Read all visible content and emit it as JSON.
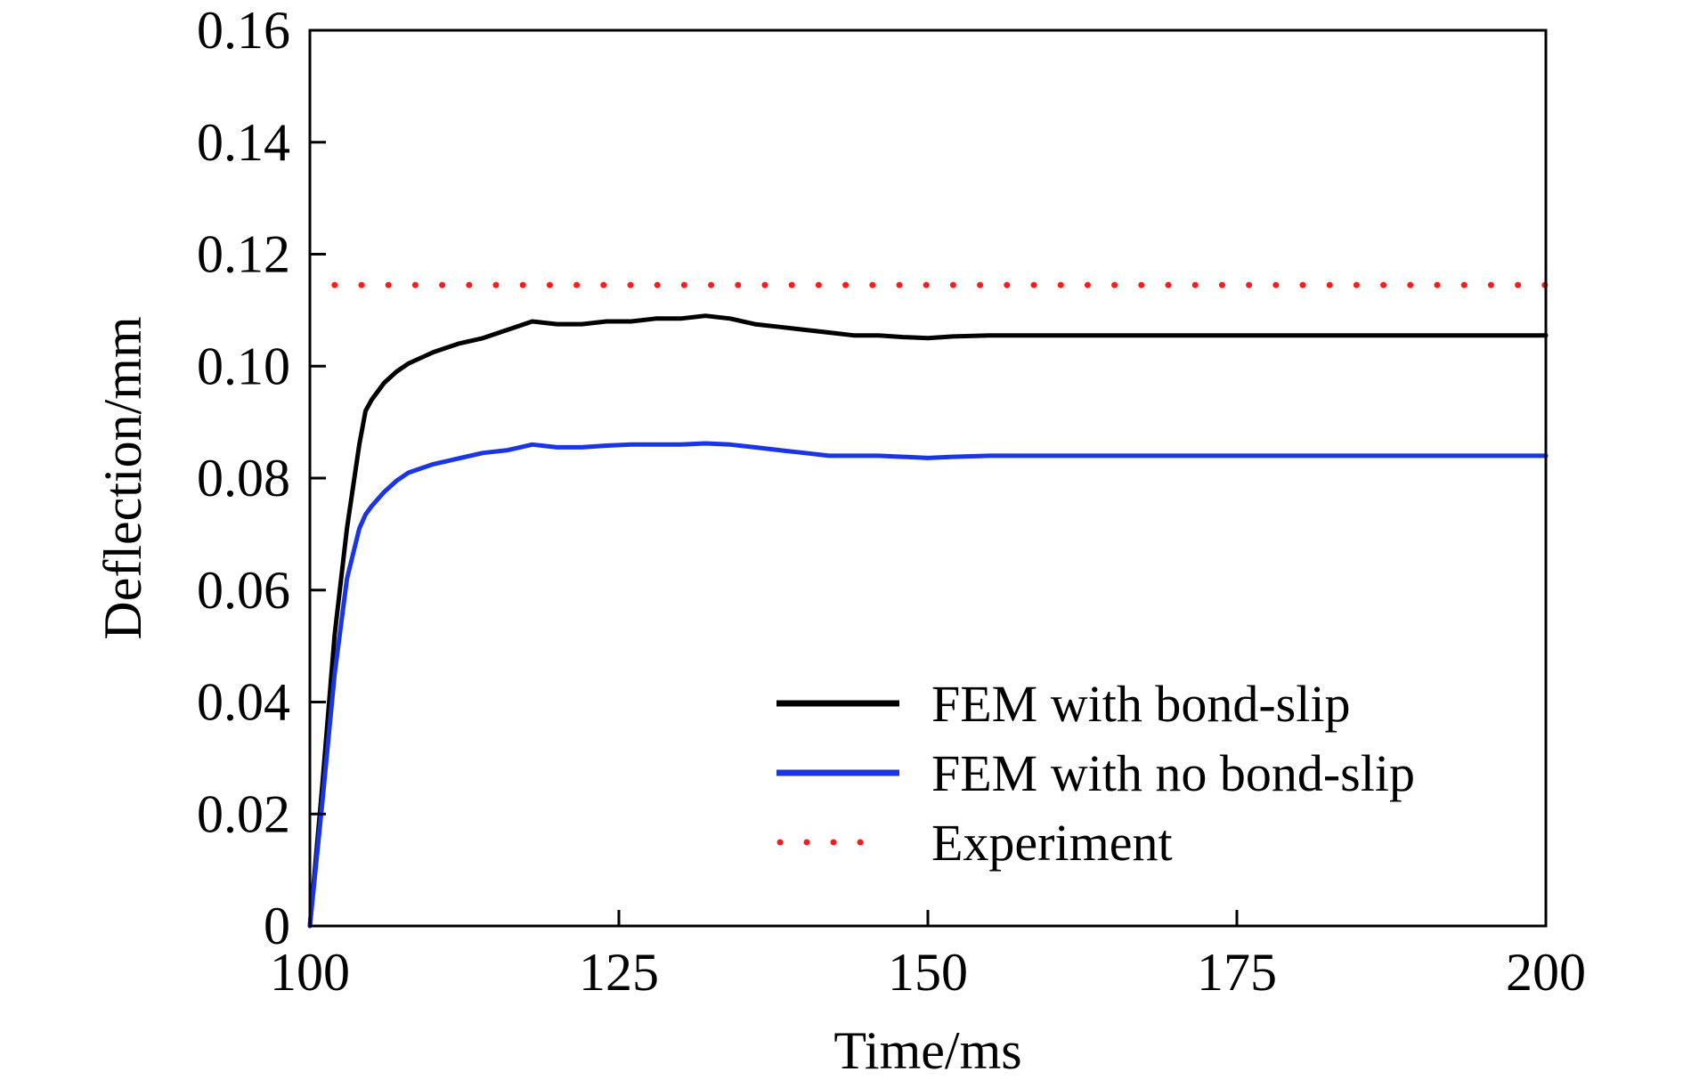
{
  "chart_data": {
    "type": "line",
    "title": "",
    "xlabel": "Time/ms",
    "ylabel": "Deflection/mm",
    "xlim": [
      100,
      200
    ],
    "ylim": [
      0,
      0.16
    ],
    "xticks": [
      100,
      125,
      150,
      175,
      200
    ],
    "xtick_labels": [
      "100",
      "125",
      "150",
      "175",
      "200"
    ],
    "yticks": [
      0,
      0.02,
      0.04,
      0.06,
      0.08,
      0.1,
      0.12,
      0.14,
      0.16
    ],
    "ytick_labels": [
      "0",
      "0.02",
      "0.04",
      "0.06",
      "0.08",
      "0.10",
      "0.12",
      "0.14",
      "0.16"
    ],
    "grid": false,
    "legend_position": "bottom-right",
    "series": [
      {
        "name": "FEM with bond-slip",
        "color": "#000000",
        "style": "solid",
        "x": [
          100,
          101,
          102,
          103,
          104,
          104.5,
          105,
          106,
          107,
          108,
          110,
          112,
          114,
          116,
          118,
          120,
          122,
          124,
          126,
          128,
          130,
          132,
          134,
          136,
          138,
          140,
          142,
          144,
          146,
          148,
          150,
          152,
          155,
          160,
          165,
          170,
          175,
          180,
          185,
          190,
          195,
          200
        ],
        "y": [
          0,
          0.025,
          0.052,
          0.071,
          0.086,
          0.092,
          0.094,
          0.097,
          0.099,
          0.1005,
          0.1025,
          0.104,
          0.105,
          0.1065,
          0.108,
          0.1075,
          0.1075,
          0.108,
          0.108,
          0.1085,
          0.1085,
          0.109,
          0.1085,
          0.1075,
          0.107,
          0.1065,
          0.106,
          0.1055,
          0.1055,
          0.1052,
          0.105,
          0.1053,
          0.1055,
          0.1055,
          0.1055,
          0.1055,
          0.1055,
          0.1055,
          0.1055,
          0.1055,
          0.1055,
          0.1055
        ]
      },
      {
        "name": "FEM with no bond-slip",
        "color": "#1a35e6",
        "style": "solid",
        "x": [
          100,
          101,
          102,
          103,
          104,
          104.5,
          105,
          106,
          107,
          108,
          110,
          112,
          114,
          116,
          118,
          120,
          122,
          124,
          126,
          128,
          130,
          132,
          134,
          136,
          138,
          140,
          142,
          144,
          146,
          148,
          150,
          152,
          155,
          160,
          165,
          170,
          175,
          180,
          185,
          190,
          195,
          200
        ],
        "y": [
          0,
          0.022,
          0.045,
          0.062,
          0.071,
          0.0735,
          0.075,
          0.0775,
          0.0795,
          0.081,
          0.0825,
          0.0835,
          0.0845,
          0.085,
          0.086,
          0.0855,
          0.0855,
          0.0858,
          0.086,
          0.086,
          0.086,
          0.0862,
          0.086,
          0.0855,
          0.085,
          0.0845,
          0.084,
          0.084,
          0.084,
          0.0838,
          0.0836,
          0.0838,
          0.084,
          0.084,
          0.084,
          0.084,
          0.084,
          0.084,
          0.084,
          0.084,
          0.084,
          0.084
        ]
      },
      {
        "name": "Experiment",
        "color": "#ff1a1a",
        "style": "dotted",
        "x": [
          102,
          200
        ],
        "y": [
          0.1145,
          0.1145
        ]
      }
    ]
  }
}
